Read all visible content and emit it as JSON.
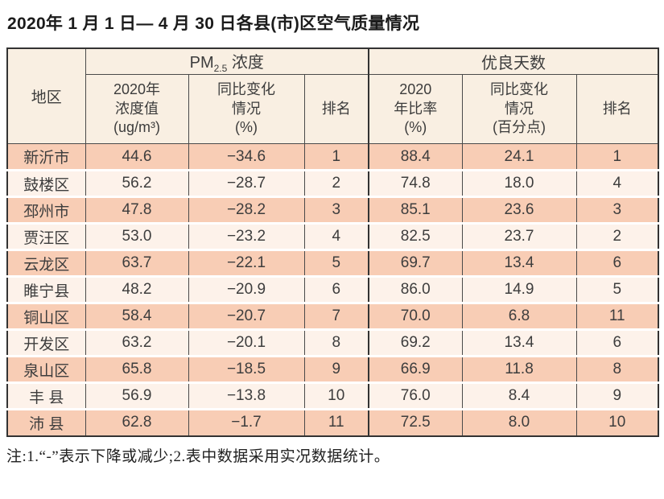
{
  "page_title": "2020年 1 月 1 日— 4 月 30 日各县(市)区空气质量情况",
  "colors": {
    "row_odd": "#f8cdb5",
    "row_even": "#fdf2ea",
    "header_bg": "#f9efe2",
    "border_dark": "#4a4a4a",
    "border_outer": "#333333"
  },
  "table": {
    "region_header": "地区",
    "group_pm": {
      "prefix": "PM",
      "sub": "2.5",
      "suffix": " 浓度"
    },
    "group_good": "优良天数",
    "subheaders": {
      "pm_value": "2020年\n浓度值\n(ug/m³)",
      "pm_change": "同比变化\n情况\n(%)",
      "pm_rank": "排名",
      "good_rate": "2020\n年比率\n(%)",
      "good_change": "同比变化\n情况\n(百分点)",
      "good_rank": "排名"
    },
    "rows": [
      {
        "region": "新沂市",
        "pm_value": "44.6",
        "pm_change": "−34.6",
        "pm_rank": "1",
        "good_rate": "88.4",
        "good_change": "24.1",
        "good_rank": "1"
      },
      {
        "region": "鼓楼区",
        "pm_value": "56.2",
        "pm_change": "−28.7",
        "pm_rank": "2",
        "good_rate": "74.8",
        "good_change": "18.0",
        "good_rank": "4"
      },
      {
        "region": "邳州市",
        "pm_value": "47.8",
        "pm_change": "−28.2",
        "pm_rank": "3",
        "good_rate": "85.1",
        "good_change": "23.6",
        "good_rank": "3"
      },
      {
        "region": "贾汪区",
        "pm_value": "53.0",
        "pm_change": "−23.2",
        "pm_rank": "4",
        "good_rate": "82.5",
        "good_change": "23.7",
        "good_rank": "2"
      },
      {
        "region": "云龙区",
        "pm_value": "63.7",
        "pm_change": "−22.1",
        "pm_rank": "5",
        "good_rate": "69.7",
        "good_change": "13.4",
        "good_rank": "6"
      },
      {
        "region": "睢宁县",
        "pm_value": "48.2",
        "pm_change": "−20.9",
        "pm_rank": "6",
        "good_rate": "86.0",
        "good_change": "14.9",
        "good_rank": "5"
      },
      {
        "region": "铜山区",
        "pm_value": "58.4",
        "pm_change": "−20.7",
        "pm_rank": "7",
        "good_rate": "70.0",
        "good_change": "6.8",
        "good_rank": "11"
      },
      {
        "region": "开发区",
        "pm_value": "63.2",
        "pm_change": "−20.1",
        "pm_rank": "8",
        "good_rate": "69.2",
        "good_change": "13.4",
        "good_rank": "6"
      },
      {
        "region": "泉山区",
        "pm_value": "65.8",
        "pm_change": "−18.5",
        "pm_rank": "9",
        "good_rate": "66.9",
        "good_change": "11.8",
        "good_rank": "8"
      },
      {
        "region": "丰 县",
        "pm_value": "56.9",
        "pm_change": "−13.8",
        "pm_rank": "10",
        "good_rate": "76.0",
        "good_change": "8.4",
        "good_rank": "9"
      },
      {
        "region": "沛 县",
        "pm_value": "62.8",
        "pm_change": "−1.7",
        "pm_rank": "11",
        "good_rate": "72.5",
        "good_change": "8.0",
        "good_rank": "10"
      }
    ]
  },
  "footnote": "注:1.“-”表示下降或减少;2.表中数据采用实况数据统计。"
}
